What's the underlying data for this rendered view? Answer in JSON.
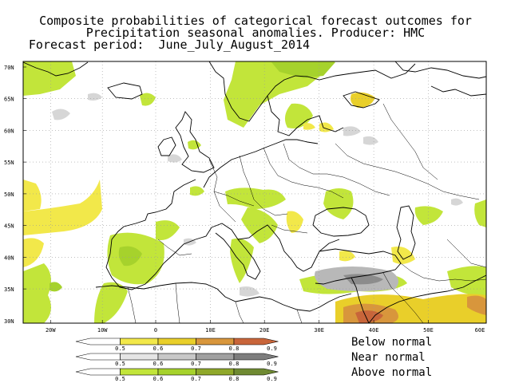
{
  "title": {
    "line1": "Composite probabilities of categorical forecast outcomes for",
    "line2": "Precipitation seasonal anomalies. Producer: HMC",
    "line3": "Forecast period:  June_July_August_2014"
  },
  "map": {
    "lat_labels": [
      "70N",
      "65N",
      "60N",
      "55N",
      "50N",
      "45N",
      "40N",
      "35N",
      "30N"
    ],
    "lon_labels": [
      "20W",
      "10W",
      "0",
      "10E",
      "20E",
      "30E",
      "40E",
      "50E",
      "60E"
    ],
    "grid": true
  },
  "legend": {
    "rows": [
      {
        "name": "Below normal",
        "thresholds": [
          "0.5",
          "0.6",
          "0.7",
          "0.8",
          "0.9"
        ],
        "colors": [
          "#ffffff",
          "#f2e84a",
          "#e9cf2a",
          "#d8963c",
          "#c8653a"
        ]
      },
      {
        "name": "Near normal",
        "thresholds": [
          "0.5",
          "0.6",
          "0.7",
          "0.8",
          "0.9"
        ],
        "colors": [
          "#ffffff",
          "#e5e5e5",
          "#c8c8c8",
          "#a0a0a0",
          "#7d7d7d"
        ]
      },
      {
        "name": "Above normal",
        "thresholds": [
          "0.5",
          "0.6",
          "0.7",
          "0.8",
          "0.9"
        ],
        "colors": [
          "#ffffff",
          "#c2e53a",
          "#a6d22c",
          "#8fa82a",
          "#6f8a32"
        ]
      }
    ]
  },
  "colors": {
    "below_light": "#f2e84a",
    "below_mid": "#e9cf2a",
    "below_dark": "#d8963c",
    "below_darkest": "#c8653a",
    "near_light": "#d6d6d6",
    "near_dark": "#8c8c8c",
    "above_light": "#c2e53a",
    "above_dark": "#8fa82a"
  }
}
